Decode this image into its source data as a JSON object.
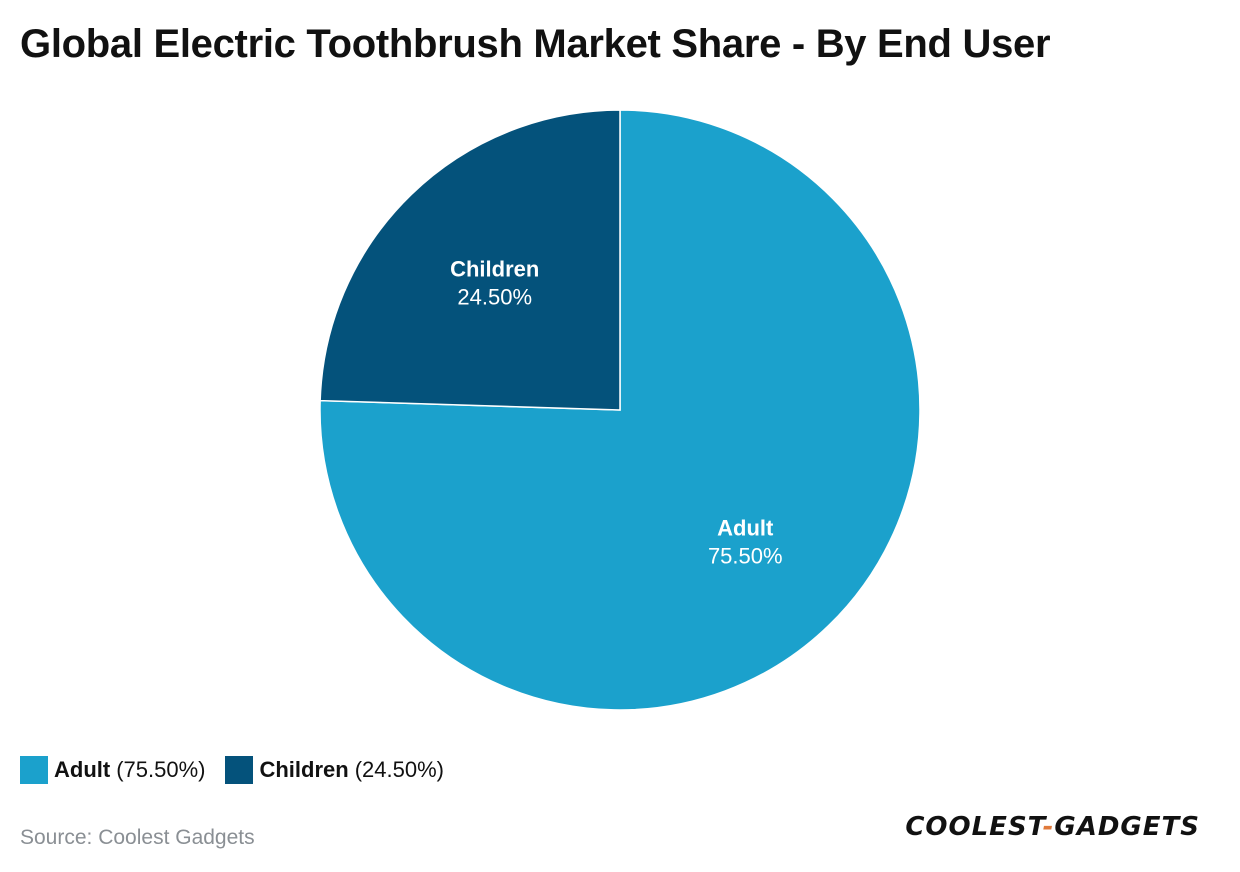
{
  "colors": {
    "adult": "#1ba1cc",
    "children": "#04527b",
    "slice_border": "#ffffff"
  },
  "chart_data": {
    "type": "pie",
    "title": "Global Electric Toothbrush Market Share - By End User",
    "categories": [
      "Adult",
      "Children"
    ],
    "values": [
      75.5,
      24.5
    ],
    "value_labels": [
      "75.50%",
      "24.50%"
    ],
    "legend_value_labels": [
      "(75.50%)",
      "(24.50%)"
    ],
    "start_angle_deg": 0,
    "direction": "clockwise",
    "legend_placement": "bottom-left"
  },
  "footer": {
    "source": "Source: Coolest Gadgets",
    "logo_left": "COOLEST",
    "logo_dash": "-",
    "logo_right": "GADGETS"
  }
}
